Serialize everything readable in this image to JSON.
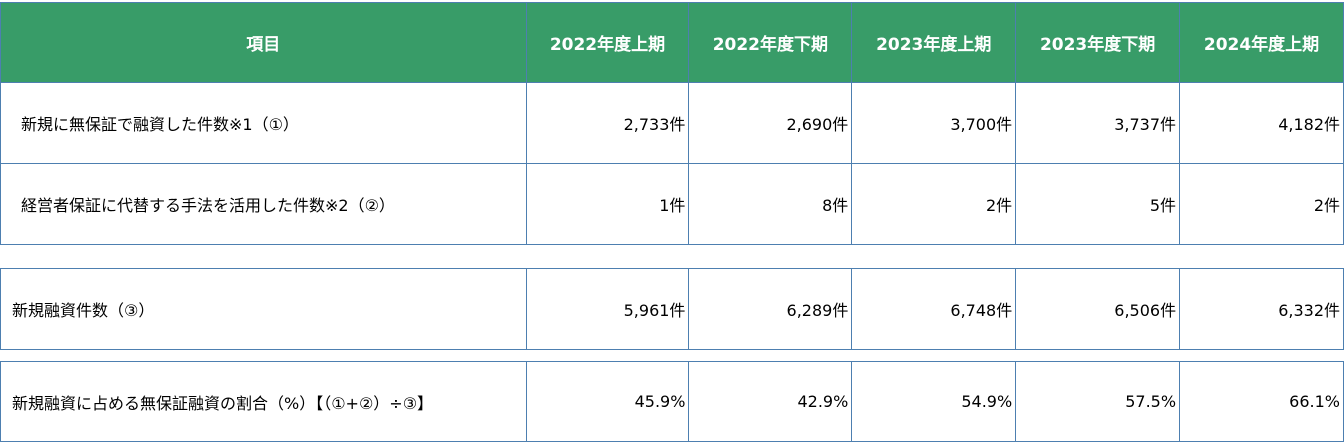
{
  "header": {
    "item": "項目",
    "periods": [
      "2022年度上期",
      "2022年度下期",
      "2023年度上期",
      "2023年度下期",
      "2024年度上期"
    ]
  },
  "rows": [
    {
      "label": "新規に無保証で融資した件数※1（①）",
      "values": [
        "2,733件",
        "2,690件",
        "3,700件",
        "3,737件",
        "4,182件"
      ]
    },
    {
      "label": "経営者保証に代替する手法を活用した件数※2（②）",
      "values": [
        "1件",
        "8件",
        "2件",
        "5件",
        "2件"
      ]
    }
  ],
  "new_loans": {
    "label": "新規融資件数（③）",
    "values": [
      "5,961件",
      "6,289件",
      "6,748件",
      "6,506件",
      "6,332件"
    ]
  },
  "ratio": {
    "label": "新規融資に占める無保証融資の割合（%）【（①+②）÷③】",
    "values": [
      "45.9%",
      "42.9%",
      "54.9%",
      "57.5%",
      "66.1%"
    ]
  }
}
